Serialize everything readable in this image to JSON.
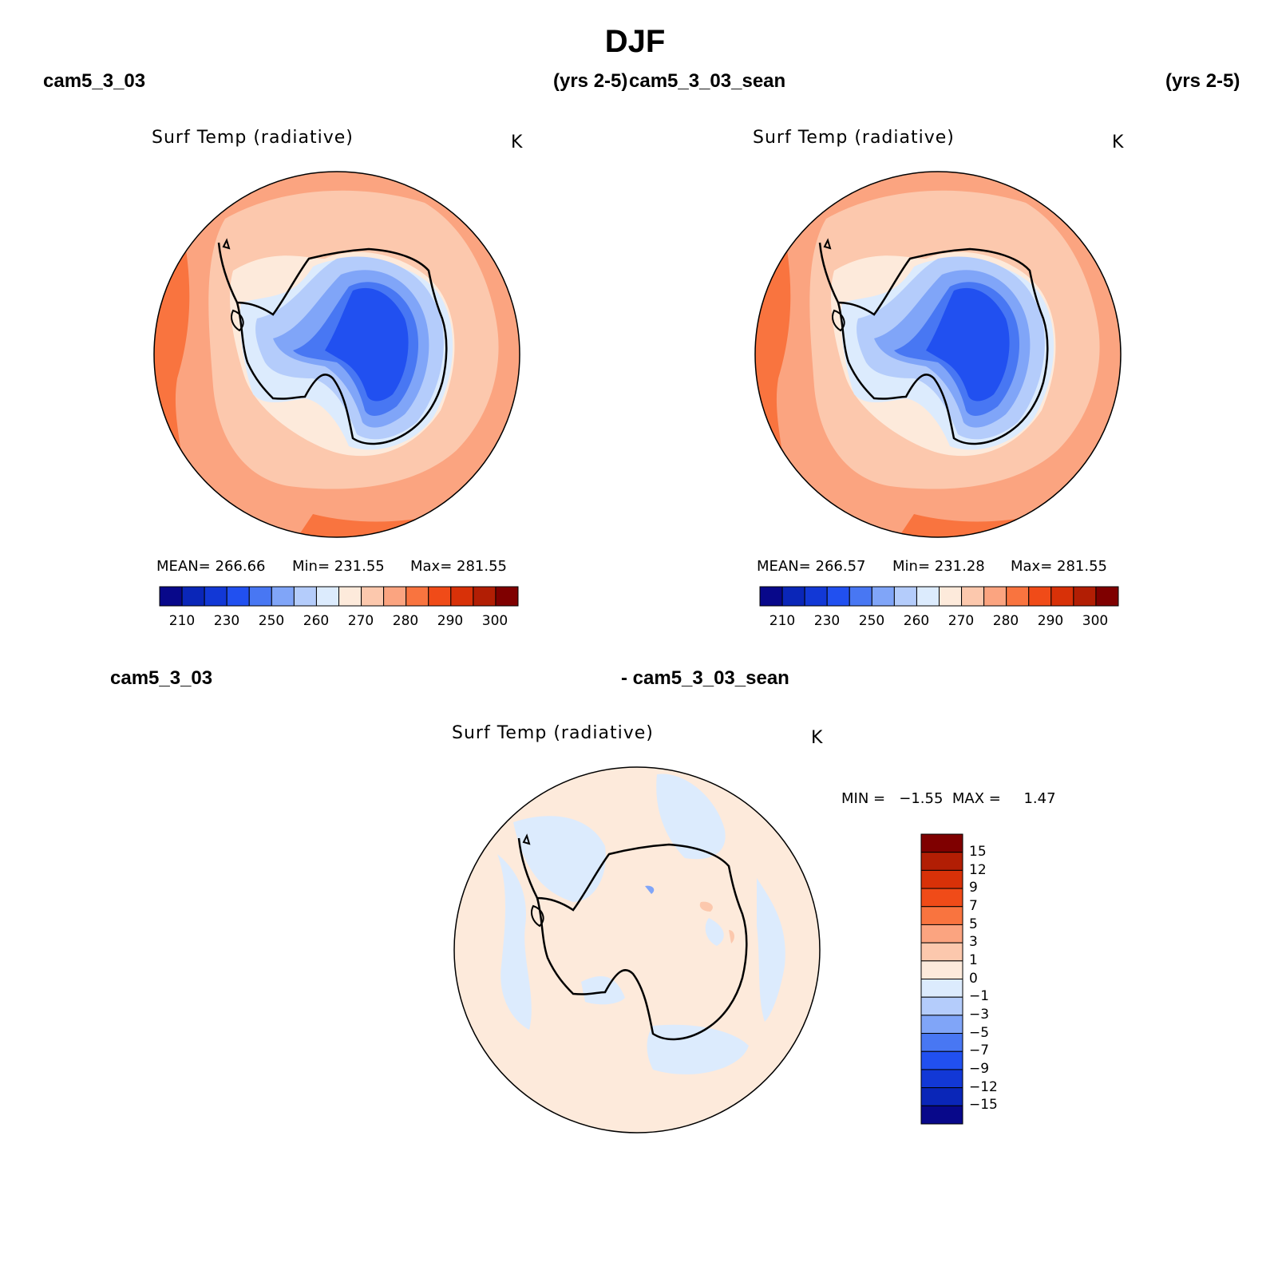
{
  "page_title": "DJF",
  "colors": {
    "temp_scale": [
      "#08088a",
      "#0a26b8",
      "#1238d6",
      "#2150f0",
      "#4877f3",
      "#80a5f8",
      "#b4ccfb",
      "#dcebfd",
      "#fdeadb",
      "#fcc8ad",
      "#fba480",
      "#f9743f",
      "#f04b18",
      "#d83108",
      "#b21e04",
      "#7f0000"
    ],
    "diff_scale": [
      "#08088a",
      "#0a26b8",
      "#1238d6",
      "#2150f0",
      "#4877f3",
      "#80a5f8",
      "#b4ccfb",
      "#dcebfd",
      "#fdeadb",
      "#fcc8ad",
      "#fba480",
      "#f9743f",
      "#f04b18",
      "#d83108",
      "#b21e04",
      "#7f0000"
    ]
  },
  "panels": [
    {
      "case_name": "cam5_3_03",
      "years": "(yrs 2-5)",
      "title": "Surf Temp (radiative)",
      "units": "K",
      "mean_text": "MEAN=  266.66",
      "min_text": "Min=  231.55",
      "max_text": "Max=  281.55",
      "colorbar_ticks": [
        "210",
        "230",
        "250",
        "260",
        "270",
        "280",
        "290",
        "300"
      ]
    },
    {
      "case_name": "cam5_3_03_sean",
      "years": "(yrs 2-5)",
      "title": "Surf Temp (radiative)",
      "units": "K",
      "mean_text": "MEAN=  266.57",
      "min_text": "Min=  231.28",
      "max_text": "Max=  281.55",
      "colorbar_ticks": [
        "210",
        "230",
        "250",
        "260",
        "270",
        "280",
        "290",
        "300"
      ]
    }
  ],
  "diff_panel": {
    "label_left": "cam5_3_03",
    "label_right": "- cam5_3_03_sean",
    "title": "Surf Temp (radiative)",
    "units": "K",
    "minmax_text": "MIN =   −1.55  MAX =     1.47",
    "colorbar_ticks": [
      "15",
      "12",
      "9",
      "7",
      "5",
      "3",
      "1",
      "0",
      "−1",
      "−3",
      "−5",
      "−7",
      "−9",
      "−12",
      "−15"
    ]
  }
}
